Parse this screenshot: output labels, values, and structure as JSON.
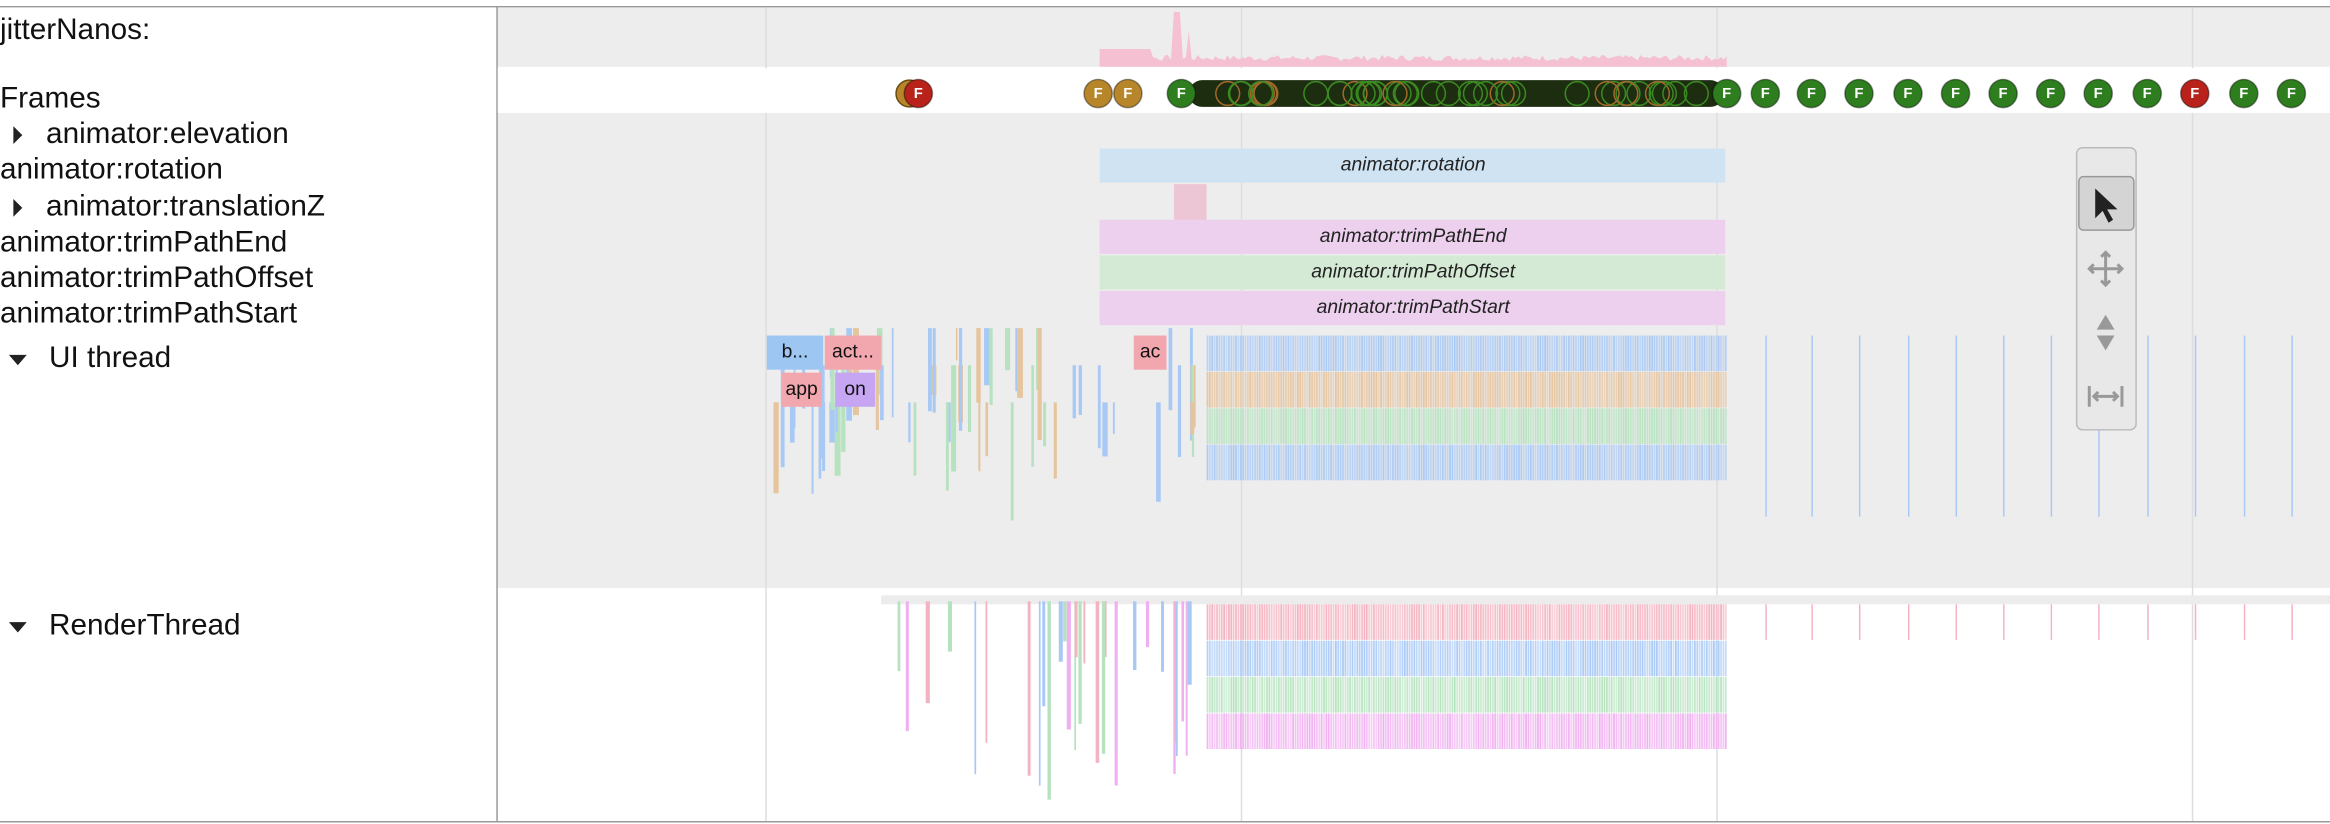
{
  "tracks": [
    {
      "label": "jitterNanos:"
    },
    {
      "label": "Frames"
    },
    {
      "label": "animator:elevation"
    },
    {
      "label": "animator:rotation"
    },
    {
      "label": "animator:translationZ"
    },
    {
      "label": "animator:trimPathEnd"
    },
    {
      "label": "animator:trimPathOffset"
    },
    {
      "label": "animator:trimPathStart"
    },
    {
      "label": "UI thread"
    },
    {
      "label": "RenderThread"
    }
  ],
  "frames": [
    {
      "label": "F",
      "color": "#b8221a"
    },
    {
      "label": "F",
      "color": "#b8862a"
    },
    {
      "label": "F",
      "color": "#b8862a"
    },
    {
      "label": "F",
      "color": "#2e7d1e"
    },
    {
      "label": "F",
      "color": "#2e7d1e"
    },
    {
      "label": "F",
      "color": "#2e7d1e"
    },
    {
      "label": "F",
      "color": "#2e7d1e"
    },
    {
      "label": "F",
      "color": "#2e7d1e"
    },
    {
      "label": "F",
      "color": "#2e7d1e"
    },
    {
      "label": "F",
      "color": "#2e7d1e"
    },
    {
      "label": "F",
      "color": "#2e7d1e"
    },
    {
      "label": "F",
      "color": "#2e7d1e"
    },
    {
      "label": "F",
      "color": "#2e7d1e"
    },
    {
      "label": "F",
      "color": "#2e7d1e"
    },
    {
      "label": "F",
      "color": "#b8221a"
    },
    {
      "label": "F",
      "color": "#2e7d1e"
    },
    {
      "label": "F",
      "color": "#2e7d1e"
    }
  ],
  "animator_slices": [
    {
      "label": "animator:rotation",
      "color": "#cfe3f2"
    },
    {
      "label": "animator:trimPathEnd",
      "color": "#ecd0ee"
    },
    {
      "label": "animator:trimPathOffset",
      "color": "#d5ead5"
    },
    {
      "label": "animator:trimPathStart",
      "color": "#ecd0ee"
    }
  ],
  "thread_slices": [
    {
      "label": "b...",
      "color": "#9ec6f3"
    },
    {
      "label": "act...",
      "color": "#f2a6ae"
    },
    {
      "label": "app",
      "color": "#f2a6ae"
    },
    {
      "label": "on",
      "color": "#c6a6f3"
    },
    {
      "label": "ac",
      "color": "#f2a6ae"
    }
  ]
}
